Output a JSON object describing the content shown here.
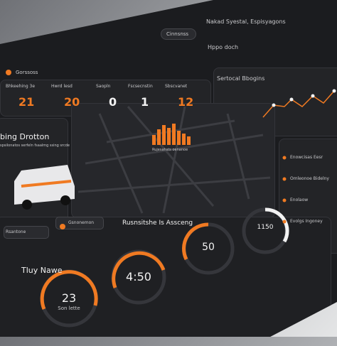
{
  "header": {
    "title": "Nakad Syestal, Espisyagons",
    "button": "Cinnsnss",
    "brand": "Gorssoss"
  },
  "stats": [
    {
      "label": "Bhkeehing 3e",
      "value": 21
    },
    {
      "label": "Hwrd lesd",
      "value": 20
    },
    {
      "label": "Saopln",
      "value": 0
    },
    {
      "label": "Fscsecnstin",
      "value": 1
    },
    {
      "label": "Sbscvanet",
      "value": 12
    }
  ],
  "side_panel": {
    "title": "Hppo doch",
    "chart_title": "Sertocal Bbogins"
  },
  "vehicle": {
    "title": "bing Drotton",
    "subtitle": "spsilonatos serfeln fsaalmg ssing srcde",
    "buttons": [
      "Rsantone",
      "Gsnonemon"
    ]
  },
  "map": {
    "caption": "Rujesahsts oenanoe"
  },
  "list": [
    "Enowcisas Eesr",
    "Omleonoe Bidelny",
    "Enolaow",
    "Evolgs Ingoney"
  ],
  "section_title": "Rusnsitshe Is Assceng",
  "timer_title": "Tluy Nawe",
  "gauges": [
    {
      "value": "23",
      "label": "Son lette"
    },
    {
      "value": "4:50"
    },
    {
      "value": "50"
    },
    {
      "value": "1150"
    }
  ]
}
